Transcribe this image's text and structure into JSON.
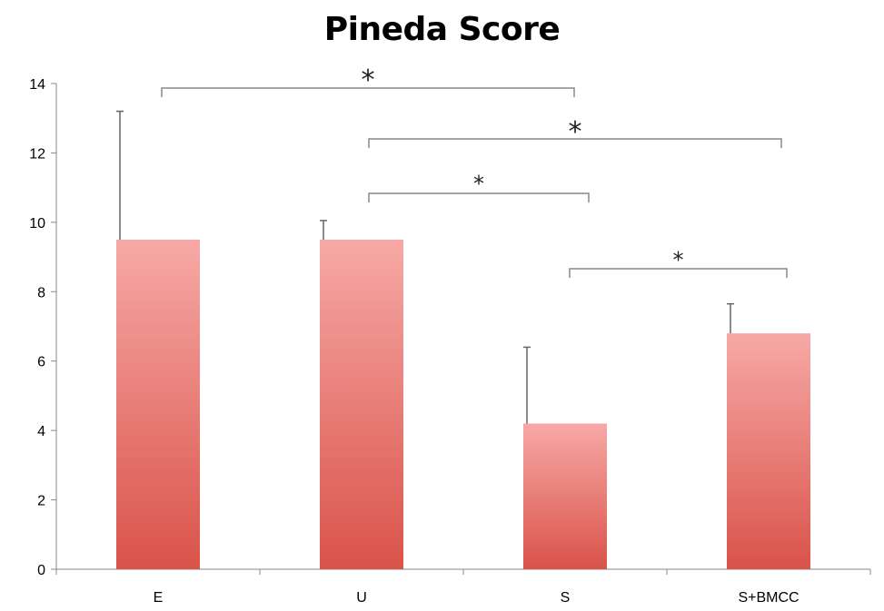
{
  "chart_data": {
    "type": "bar",
    "title": "Pineda Score",
    "xlabel": "",
    "ylabel": "",
    "categories": [
      "E",
      "U",
      "S",
      "S+BMCC"
    ],
    "values": [
      9.5,
      9.5,
      4.2,
      6.8
    ],
    "error_upper": [
      13.2,
      10.05,
      6.4,
      7.65
    ],
    "ylim": [
      0,
      14
    ],
    "yticks": [
      0,
      2,
      4,
      6,
      8,
      10,
      12,
      14
    ],
    "grid": false,
    "legend": "none",
    "bar_color_top": "#f7a9a6",
    "bar_color_bottom": "#d9534a",
    "significance": [
      {
        "from": 0,
        "to": 2,
        "label": "*"
      },
      {
        "from": 1,
        "to": 3,
        "label": "*"
      },
      {
        "from": 1,
        "to": 2,
        "label": "*"
      },
      {
        "from": 2,
        "to": 3,
        "label": "*"
      }
    ]
  }
}
